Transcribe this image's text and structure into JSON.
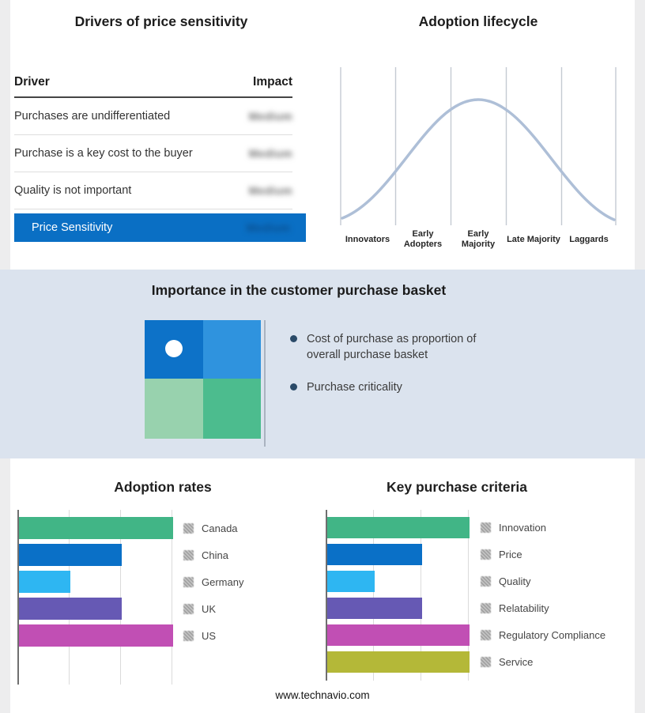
{
  "drivers": {
    "title": "Drivers of price sensitivity",
    "columns": {
      "driver": "Driver",
      "impact": "Impact"
    },
    "rows": [
      {
        "driver": "Purchases are undifferentiated",
        "impact": "Medium"
      },
      {
        "driver": "Purchase is a key cost to the buyer",
        "impact": "Medium"
      },
      {
        "driver": "Quality is not important",
        "impact": "Medium"
      }
    ],
    "summary": {
      "label": "Price Sensitivity",
      "impact": "Medium"
    }
  },
  "basket": {
    "title": "Importance in the customer purchase basket",
    "bullets": [
      "Cost of purchase as proportion of overall purchase basket",
      "Purchase criticality"
    ]
  },
  "footer": {
    "site": "www.technavio.com"
  },
  "colors": {
    "summary_banner": "#0a6fc4",
    "summary_impact_text": "#0a4d8c",
    "band_background": "#dbe3ee",
    "curve": "#aebfd7",
    "quadrant_top_left": "#0d72c8",
    "quadrant_top_right": "#2f93de",
    "quadrant_bottom_left": "#98d2ae",
    "quadrant_bottom_right": "#4cbc8e"
  },
  "chart_data": [
    {
      "type": "line",
      "title": "Adoption lifecycle",
      "categories": [
        "Innovators",
        "Early Adopters",
        "Early Majority",
        "Late Majority",
        "Laggards"
      ],
      "shape": "bell-curve peaking at Early Majority",
      "grid": "vertical stage dividers, no y-axis values"
    },
    {
      "type": "bar",
      "title": "Adoption rates",
      "orientation": "horizontal",
      "categories": [
        "Canada",
        "China",
        "Germany",
        "UK",
        "US"
      ],
      "values": [
        3,
        2,
        1,
        2,
        3
      ],
      "xlim": [
        0,
        3
      ],
      "colors": [
        "#41b586",
        "#0a70c7",
        "#2eb6f2",
        "#6659b4",
        "#c14fb4"
      ],
      "legend_position": "right",
      "gridlines": true
    },
    {
      "type": "bar",
      "title": "Key purchase criteria",
      "orientation": "horizontal",
      "categories": [
        "Innovation",
        "Price",
        "Quality",
        "Relatability",
        "Regulatory Compliance",
        "Service"
      ],
      "values": [
        3,
        2,
        1,
        2,
        3,
        3
      ],
      "xlim": [
        0,
        3
      ],
      "colors": [
        "#41b586",
        "#0a70c7",
        "#2eb6f2",
        "#6659b4",
        "#c14fb4",
        "#b4b838"
      ],
      "legend_position": "right",
      "gridlines": true
    }
  ]
}
